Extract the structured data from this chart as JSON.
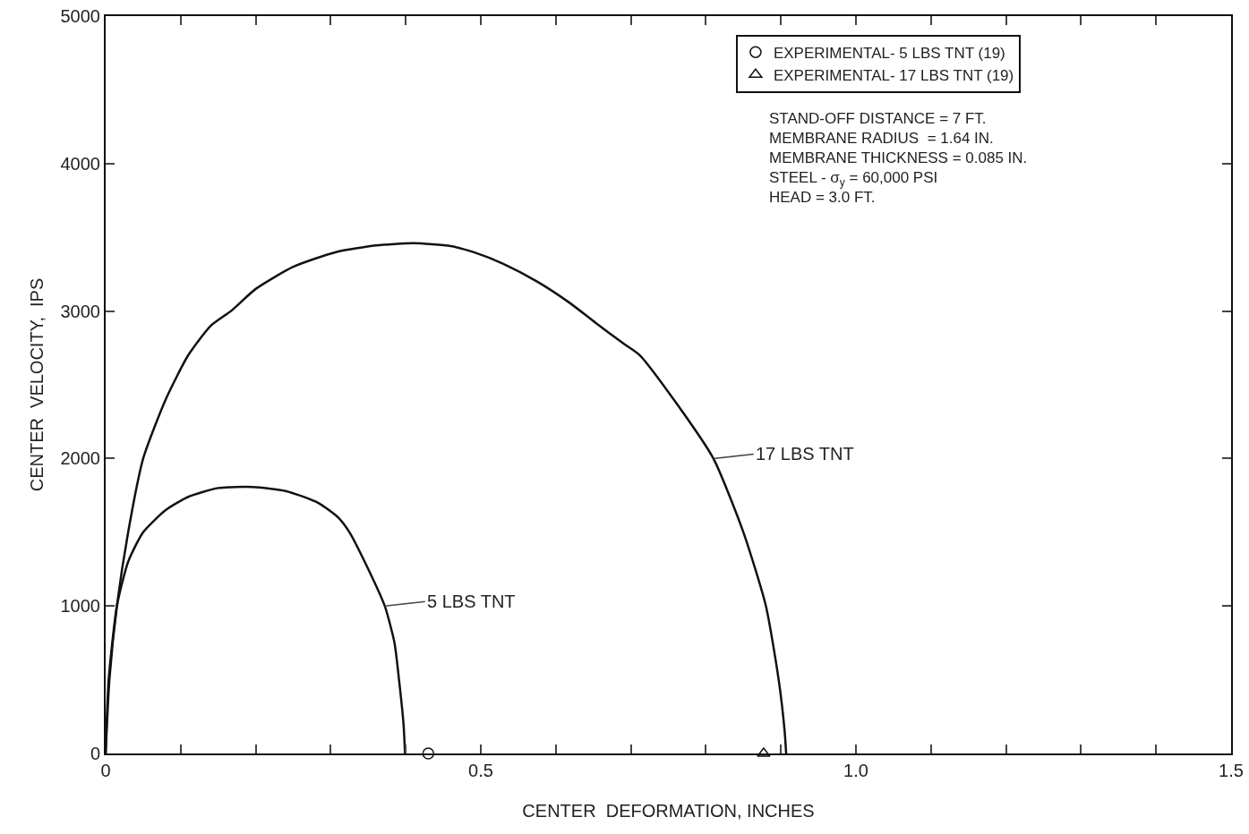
{
  "chart_data": {
    "type": "line",
    "xlabel": "CENTER  DEFORMATION, INCHES",
    "ylabel": "CENTER  VELOCITY,  IPS",
    "xlim": [
      0,
      1.5
    ],
    "xticks": [
      0,
      {
        "value": 0.1,
        "label": null
      },
      {
        "value": 0.2,
        "label": null
      },
      {
        "value": 0.3,
        "label": null
      },
      {
        "value": 0.4,
        "label": null
      },
      0.5,
      {
        "value": 0.6,
        "label": null
      },
      {
        "value": 0.7,
        "label": null
      },
      {
        "value": 0.8,
        "label": null
      },
      {
        "value": 0.9,
        "label": null
      },
      {
        "value": 1,
        "label": "1.0"
      },
      {
        "value": 1.1,
        "label": null
      },
      {
        "value": 1.2,
        "label": null
      },
      {
        "value": 1.3,
        "label": null
      },
      {
        "value": 1.4,
        "label": null
      },
      1.5
    ],
    "ylim": [
      0,
      5000
    ],
    "yticks": [
      0,
      1000,
      2000,
      3000,
      4000,
      5000
    ],
    "grid": false,
    "legend": "top right",
    "series": [
      {
        "color": "#111111",
        "marker": "none",
        "x": [
          0,
          0.005,
          0.015,
          0.03,
          0.05,
          0.08,
          0.11,
          0.14,
          0.167,
          0.2,
          0.25,
          0.307,
          0.36,
          0.41,
          0.46,
          0.49,
          0.53,
          0.575,
          0.62,
          0.653,
          0.69,
          0.712,
          0.76,
          0.81,
          0.85,
          0.88,
          0.897,
          0.905,
          0.907
        ],
        "values": [
          0,
          500,
          1000,
          1500,
          2000,
          2400,
          2700,
          2900,
          3000,
          3150,
          3300,
          3400,
          3445,
          3460,
          3440,
          3400,
          3320,
          3200,
          3050,
          2920,
          2780,
          2700,
          2380,
          2000,
          1500,
          1000,
          500,
          150,
          0
        ]
      },
      {
        "color": "#111111",
        "marker": "none",
        "x": [
          0,
          0.004,
          0.015,
          0.03,
          0.05,
          0.08,
          0.11,
          0.15,
          0.196,
          0.24,
          0.283,
          0.31,
          0.325,
          0.35,
          0.372,
          0.385,
          0.391,
          0.397,
          0.399
        ],
        "values": [
          0,
          500,
          1000,
          1300,
          1500,
          1650,
          1740,
          1800,
          1807,
          1780,
          1700,
          1600,
          1500,
          1250,
          1000,
          750,
          500,
          200,
          0
        ]
      },
      {
        "type": "scatter",
        "name": "EXPERIMENTAL- 5 LBS TNT (19)",
        "color": "#111111",
        "marker": "circle",
        "x": [
          0.43
        ],
        "values": [
          0
        ]
      },
      {
        "type": "scatter",
        "name": "EXPERIMENTAL- 17 LBS TNT (19)",
        "color": "#111111",
        "marker": "triangle",
        "x": [
          0.877
        ],
        "values": [
          0
        ]
      }
    ],
    "annotations": [
      "STAND-OFF DISTANCE = 7 FT.",
      "MEMBRANE RADIUS  = 1.64 IN.",
      "MEMBRANE THICKNESS = 0.085 IN.",
      "STEEL - σ$_{y}$ = 60,000 PSI",
      "HEAD = 3.0 FT.",
      {
        "text": "17 LBS TNT",
        "x": 0.81,
        "y": 2000
      },
      {
        "text": "5 LBS TNT",
        "x": 0.372,
        "y": 1000
      }
    ]
  }
}
